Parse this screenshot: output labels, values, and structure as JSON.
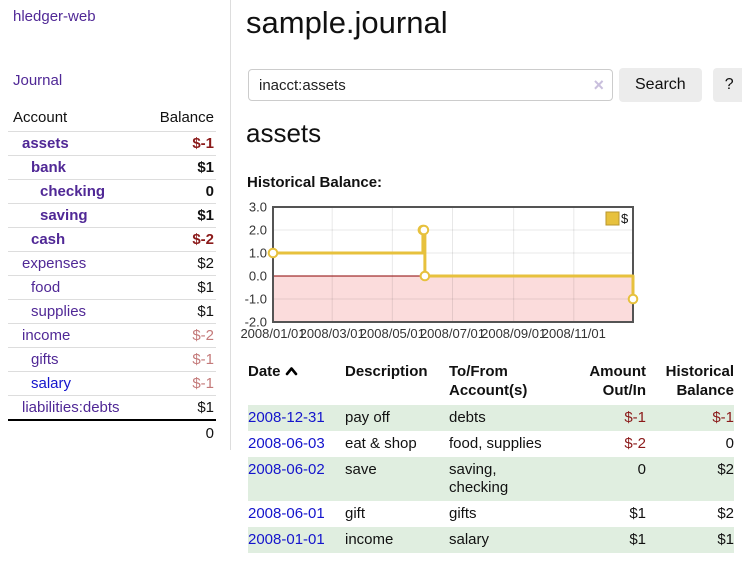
{
  "sidebar": {
    "brand": "hledger-web",
    "journal_label": "Journal",
    "accounts_table": {
      "col_account": "Account",
      "col_balance": "Balance",
      "rows": [
        {
          "name": "assets",
          "level": 1,
          "bold": true,
          "balance": "$-1",
          "balance_style": "neg-strong"
        },
        {
          "name": "bank",
          "level": 2,
          "bold": true,
          "balance": "$1",
          "balance_style": "pos"
        },
        {
          "name": "checking",
          "level": 3,
          "bold": true,
          "balance": "0",
          "balance_style": "pos"
        },
        {
          "name": "saving",
          "level": 3,
          "bold": true,
          "balance": "$1",
          "balance_style": "pos"
        },
        {
          "name": "cash",
          "level": 2,
          "bold": true,
          "balance": "$-2",
          "balance_style": "neg-strong"
        },
        {
          "name": "expenses",
          "level": 1,
          "bold": false,
          "balance": "$2",
          "balance_style": "pos"
        },
        {
          "name": "food",
          "level": 2,
          "bold": false,
          "balance": "$1",
          "balance_style": "pos"
        },
        {
          "name": "supplies",
          "level": 2,
          "bold": false,
          "balance": "$1",
          "balance_style": "pos"
        },
        {
          "name": "income",
          "level": 1,
          "bold": false,
          "balance": "$-2",
          "balance_style": "neg-weak"
        },
        {
          "name": "gifts",
          "level": 2,
          "bold": false,
          "balance": "$-1",
          "balance_style": "neg-weak"
        },
        {
          "name": "salary",
          "level": 2,
          "bold": false,
          "balance": "$-1",
          "balance_style": "neg-weak",
          "link_color": "blue"
        },
        {
          "name": "liabilities:debts",
          "level": 1,
          "bold": false,
          "balance": "$1",
          "balance_style": "pos"
        }
      ],
      "total": "0"
    }
  },
  "main": {
    "title": "sample.journal",
    "search": {
      "value": "inacct:assets",
      "clear_icon": "×",
      "button_label": "Search",
      "help_label": "?"
    },
    "account_heading": "assets",
    "chart_label": "Historical Balance:"
  },
  "chart_data": {
    "type": "line",
    "step": true,
    "title": "Historical Balance",
    "x_range": [
      "2008-01-01",
      "2008-12-31"
    ],
    "ylim": [
      -2,
      3
    ],
    "y_ticks": [
      3,
      2,
      1,
      0,
      -1,
      -2
    ],
    "x_ticks": [
      {
        "date": "2008-01-01",
        "label": "2008/01/01"
      },
      {
        "date": "2008-03-01",
        "label": "2008/03/01"
      },
      {
        "date": "2008-05-01",
        "label": "2008/05/01"
      },
      {
        "date": "2008-07-01",
        "label": "2008/07/01"
      },
      {
        "date": "2008-09-01",
        "label": "2008/09/01"
      },
      {
        "date": "2008-11-01",
        "label": "2008/11/01"
      }
    ],
    "series": [
      {
        "name": "$",
        "points": [
          {
            "date": "2008-01-01",
            "value": 1
          },
          {
            "date": "2008-06-01",
            "value": 2
          },
          {
            "date": "2008-06-02",
            "value": 2
          },
          {
            "date": "2008-06-03",
            "value": 0
          },
          {
            "date": "2008-12-31",
            "value": -1
          }
        ]
      }
    ],
    "legend_position": "top-right",
    "grid": true,
    "colors": {
      "line": "#e7c13d",
      "negative_fill": "#fbdcdc",
      "zero_line": "#8b0000",
      "border": "#545454"
    }
  },
  "register": {
    "columns": {
      "date": "Date",
      "description": "Description",
      "to_from": "To/From Account(s)",
      "amount": "Amount Out/In",
      "balance": "Historical Balance"
    },
    "rows": [
      {
        "date": "2008-12-31",
        "description": "pay off",
        "to_from": "debts",
        "amount": "$-1",
        "amount_neg": true,
        "balance": "$-1",
        "balance_neg": true
      },
      {
        "date": "2008-06-03",
        "description": "eat & shop",
        "to_from": "food, supplies",
        "amount": "$-2",
        "amount_neg": true,
        "balance": "0",
        "balance_neg": false
      },
      {
        "date": "2008-06-02",
        "description": "save",
        "to_from": "saving, checking",
        "amount": "0",
        "amount_neg": false,
        "balance": "$2",
        "balance_neg": false
      },
      {
        "date": "2008-06-01",
        "description": "gift",
        "to_from": "gifts",
        "amount": "$1",
        "amount_neg": false,
        "balance": "$2",
        "balance_neg": false
      },
      {
        "date": "2008-01-01",
        "description": "income",
        "to_from": "salary",
        "amount": "$1",
        "amount_neg": false,
        "balance": "$1",
        "balance_neg": false
      }
    ]
  },
  "colors": {
    "link_purple": "#502896",
    "link_blue": "#1414cc",
    "negative_strong": "#8b1a1a",
    "negative_weak": "#c47a7a",
    "row_green": "#e0eee0",
    "chart_line": "#e7c13d",
    "chart_negative_fill": "#fbdcdc",
    "chart_zero_line": "#8b0000"
  }
}
